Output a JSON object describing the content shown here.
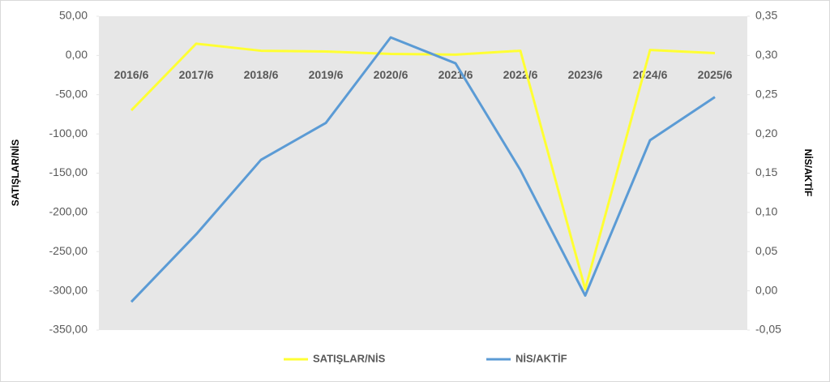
{
  "chart_data": {
    "type": "line",
    "categories": [
      "2016/6",
      "2017/6",
      "2018/6",
      "2019/6",
      "2020/6",
      "2021/6",
      "2022/6",
      "2023/6",
      "2024/6",
      "2025/6"
    ],
    "series": [
      {
        "name": "SATIŞLAR/NİS",
        "color": "#ffff33",
        "values": [
          -70,
          15,
          6,
          5,
          2,
          1,
          6,
          -298,
          7,
          3
        ]
      },
      {
        "name": "NİS/AKTİF",
        "color": "#5b9bd5",
        "axis": "y2",
        "values": [
          -0.014,
          0.072,
          0.167,
          0.214,
          0.323,
          0.29,
          0.154,
          -0.006,
          0.192,
          0.247
        ]
      }
    ],
    "ylabel": "SATIŞLAR/NİS",
    "y2label": "NİS/AKTİF",
    "ylim": [
      -350,
      50
    ],
    "yticks": [
      {
        "value": 50,
        "label": "50,00"
      },
      {
        "value": 0,
        "label": "0,00"
      },
      {
        "value": -50,
        "label": "-50,00"
      },
      {
        "value": -100,
        "label": "-100,00"
      },
      {
        "value": -150,
        "label": "-150,00"
      },
      {
        "value": -200,
        "label": "-200,00"
      },
      {
        "value": -250,
        "label": "-250,00"
      },
      {
        "value": -300,
        "label": "-300,00"
      },
      {
        "value": -350,
        "label": "-350,00"
      }
    ],
    "y2lim": [
      -0.05,
      0.35
    ],
    "y2ticks": [
      {
        "value": 0.35,
        "label": "0,35"
      },
      {
        "value": 0.3,
        "label": "0,30"
      },
      {
        "value": 0.25,
        "label": "0,25"
      },
      {
        "value": 0.2,
        "label": "0,20"
      },
      {
        "value": 0.15,
        "label": "0,15"
      },
      {
        "value": 0.1,
        "label": "0,10"
      },
      {
        "value": 0.05,
        "label": "0,05"
      },
      {
        "value": 0,
        "label": "0,00"
      },
      {
        "value": -0.05,
        "label": "-0,05"
      }
    ],
    "grid": false,
    "legend": "bottom"
  }
}
